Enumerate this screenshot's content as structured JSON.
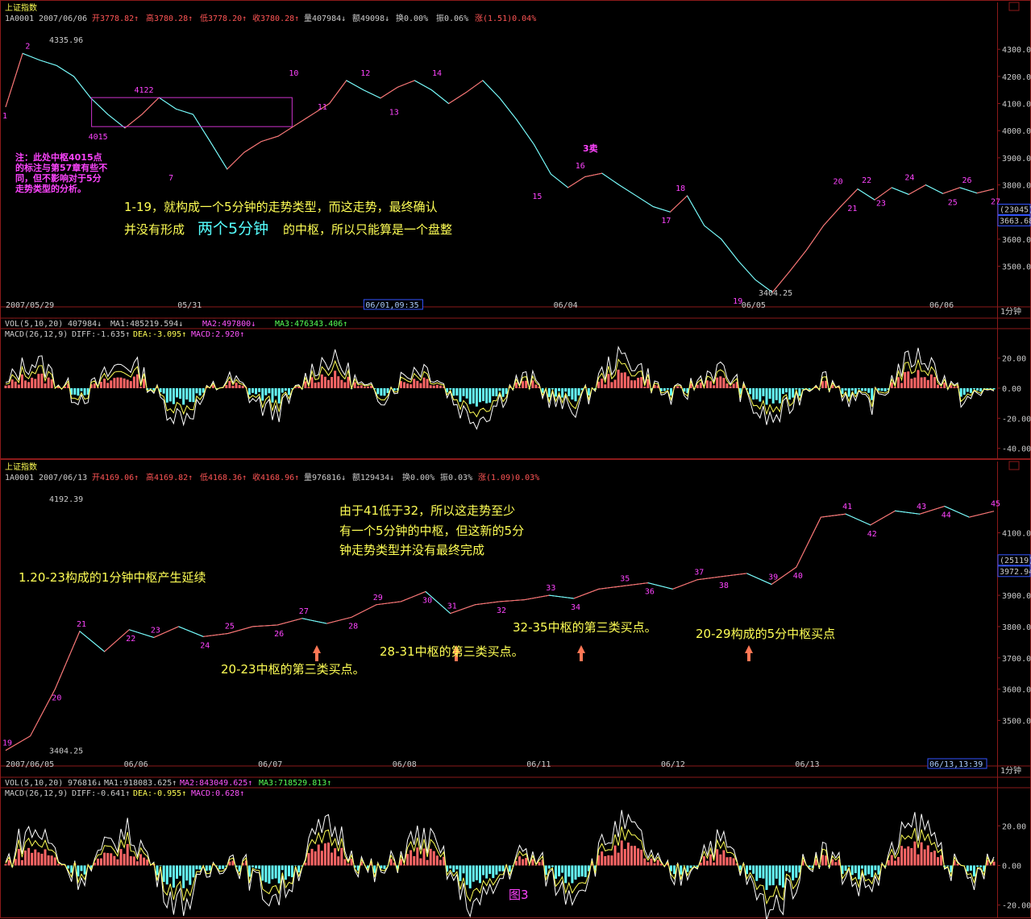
{
  "colors": {
    "up": "#ff5555",
    "down": "#55ffff",
    "price": "#ffffff",
    "frame": "#8b1a1a",
    "label": "#ff44ff",
    "note": "#ffff55",
    "blue": "#3355ff"
  },
  "fig_label": "图3",
  "chart_data": [
    {
      "type": "line",
      "panel_title": "上证指数",
      "info_code": "1A0001",
      "info_date": "2007/06/06",
      "info_open": "开3778.82↑",
      "info_high": "高3780.28↑",
      "info_low": "低3778.20↑",
      "info_close": "收3780.28↑",
      "info_vol": "量407984↓",
      "info_amt": "额49098↓",
      "info_turn": "换0.00%",
      "info_amp": "振0.06%",
      "info_chg": "涨(1.51)0.04%",
      "ylim": [
        3380,
        4360
      ],
      "yticks": [
        "4300.0",
        "4200.0",
        "4100.0",
        "4000.0",
        "3900.0",
        "3800.0",
        "3700.0",
        "3600.0",
        "3500.0"
      ],
      "badge_top": "(23045)",
      "badge_price": "3663.68",
      "xticks": [
        "2007/05/29",
        "05/31",
        "06/01,09:35",
        "06/04",
        "06/05",
        "06/06"
      ],
      "period": "1分钟",
      "hi_label": "4335.96",
      "lo_label": "3404.25",
      "pivots": [
        {
          "n": "1",
          "x": 0,
          "y": 4087,
          "pos": "below"
        },
        {
          "n": "2",
          "x": 8,
          "y": 4285,
          "pos": "above"
        },
        {
          "n": "4015",
          "x": 30,
          "y": 4010,
          "pos": "below"
        },
        {
          "n": "4122",
          "x": 46,
          "y": 4122,
          "pos": "above"
        },
        {
          "n": "7",
          "x": 58,
          "y": 3858,
          "pos": "below"
        },
        {
          "n": "10",
          "x": 100,
          "y": 4185,
          "pos": "above"
        },
        {
          "n": "11",
          "x": 110,
          "y": 4120,
          "pos": "below"
        },
        {
          "n": "12",
          "x": 125,
          "y": 4185,
          "pos": "above"
        },
        {
          "n": "13",
          "x": 135,
          "y": 4100,
          "pos": "below"
        },
        {
          "n": "14",
          "x": 150,
          "y": 4185,
          "pos": "above"
        },
        {
          "n": "15",
          "x": 185,
          "y": 3790,
          "pos": "below"
        },
        {
          "n": "16",
          "x": 200,
          "y": 3843,
          "pos": "above"
        },
        {
          "n": "17",
          "x": 230,
          "y": 3700,
          "pos": "below"
        },
        {
          "n": "18",
          "x": 235,
          "y": 3760,
          "pos": "above"
        },
        {
          "n": "19",
          "x": 255,
          "y": 3404,
          "pos": "below"
        },
        {
          "n": "20",
          "x": 290,
          "y": 3785,
          "pos": "above"
        },
        {
          "n": "21",
          "x": 295,
          "y": 3745,
          "pos": "below"
        },
        {
          "n": "22",
          "x": 300,
          "y": 3790,
          "pos": "above"
        },
        {
          "n": "23",
          "x": 305,
          "y": 3765,
          "pos": "below"
        },
        {
          "n": "24",
          "x": 315,
          "y": 3800,
          "pos": "above"
        },
        {
          "n": "25",
          "x": 330,
          "y": 3768,
          "pos": "below"
        },
        {
          "n": "26",
          "x": 335,
          "y": 3790,
          "pos": "above"
        },
        {
          "n": "27",
          "x": 345,
          "y": 3770,
          "pos": "below"
        }
      ],
      "series": [
        {
          "name": "close",
          "values": [
            4087,
            4285,
            4260,
            4240,
            4200,
            4120,
            4060,
            4010,
            4060,
            4122,
            4080,
            4060,
            3960,
            3858,
            3920,
            3960,
            3980,
            4020,
            4060,
            4100,
            4185,
            4150,
            4120,
            4160,
            4185,
            4150,
            4100,
            4140,
            4185,
            4120,
            4040,
            3950,
            3840,
            3790,
            3830,
            3843,
            3800,
            3760,
            3720,
            3700,
            3760,
            3650,
            3600,
            3520,
            3450,
            3404,
            3480,
            3560,
            3650,
            3720,
            3785,
            3745,
            3790,
            3765,
            3800,
            3768,
            3790,
            3770,
            3785
          ]
        }
      ],
      "zs_box": {
        "x0": 30,
        "x1": 100,
        "y0": 4015,
        "y1": 4122
      },
      "note_left": [
        "注：此处中枢4015点",
        "的标注与第57章有些不",
        "同，但不影响对于5分",
        "走势类型的分析。"
      ],
      "note_main_1": "1-19，就构成一个5分钟的走势类型，而这走势，最终确认",
      "note_main_2a": "并没有形成",
      "note_main_2b": "两个5分钟",
      "note_main_2c": "的中枢，所以只能算是一个盘整",
      "sell3": "3卖",
      "vol_line": {
        "a": "VOL(5,10,20)",
        "b": "407984↓",
        "c": "MA1:485219.594↓",
        "d": "MA2:497800↓",
        "e": "MA3:476343.406↑"
      },
      "macd_line": {
        "a": "MACD(26,12,9)",
        "b": "DIFF:-1.635↑",
        "c": "DEA:-3.095↑",
        "d": "MACD:2.920↑"
      },
      "macd_ticks": [
        "20.00",
        "0.00",
        "-20.00",
        "-40.00"
      ],
      "macd_lim": [
        -45,
        38
      ]
    },
    {
      "type": "line",
      "panel_title": "上证指数",
      "info_code": "1A0001",
      "info_date": "2007/06/13",
      "info_open": "开4169.06↑",
      "info_high": "高4169.82↑",
      "info_low": "低4168.36↑",
      "info_close": "收4168.96↑",
      "info_vol": "量976816↓",
      "info_amt": "额129434↓",
      "info_turn": "换0.00%",
      "info_amp": "振0.03%",
      "info_chg": "涨(1.09)0.03%",
      "ylim": [
        3380,
        4230
      ],
      "yticks": [
        "4100.0",
        "4000.0",
        "3900.0",
        "3800.0",
        "3700.0",
        "3600.0",
        "3500.0"
      ],
      "badge_top": "(25119)",
      "badge_price": "3972.94",
      "xticks": [
        "2007/06/05",
        "06/06",
        "06/07",
        "06/08",
        "06/11",
        "06/12",
        "06/13",
        "06/13,13:39"
      ],
      "period": "1分钟",
      "hi_label": "4192.39",
      "lo_label": "3404.25",
      "series": [
        {
          "name": "close",
          "values": [
            3404,
            3450,
            3600,
            3785,
            3720,
            3790,
            3765,
            3800,
            3768,
            3778,
            3800,
            3805,
            3826,
            3810,
            3830,
            3870,
            3880,
            3912,
            3842,
            3870,
            3880,
            3886,
            3900,
            3890,
            3920,
            3930,
            3940,
            3920,
            3950,
            3960,
            3970,
            3935,
            3990,
            4150,
            4160,
            4125,
            4170,
            4160,
            4185,
            4150,
            4169
          ]
        }
      ],
      "labels": {
        "20": "20",
        "21": "21",
        "22": "22",
        "23": "23",
        "24": "24",
        "25": "25",
        "26": "26",
        "27": "27",
        "28": "28",
        "29": "29",
        "30": "30",
        "31": "31",
        "32": "32",
        "33": "33",
        "34": "34",
        "35": "35",
        "36": "36",
        "37": "37",
        "38": "38",
        "39": "39",
        "40": "40",
        "41": "41",
        "42": "42",
        "43": "43",
        "44": "44",
        "45": "45",
        "19": "19"
      },
      "note_1": "1.20-23构成的1分钟中枢产生延续",
      "note_2a": "由于41低于32，所以这走势至少",
      "note_2b": "有一个5分钟的中枢，但这新的5分",
      "note_2c": "钟走势类型并没有最终完成",
      "note_3": "20-23中枢的第三类买点。",
      "note_4": "28-31中枢的第三类买点。",
      "note_5": "32-35中枢的第三类买点。",
      "note_6": "20-29构成的5分中枢买点",
      "vol_line": {
        "a": "VOL(5,10,20)",
        "b": "976816↓",
        "c": "MA1:918083.625↑",
        "d": "MA2:843049.625↑",
        "e": "MA3:718529.813↑"
      },
      "macd_line": {
        "a": "MACD(26,12,9)",
        "b": "DIFF:-0.641↑",
        "c": "DEA:-0.955↑",
        "d": "MACD:0.628↑"
      },
      "macd_ticks": [
        "20.00",
        "0.00",
        "-20.00"
      ],
      "macd_lim": [
        -25,
        38
      ]
    }
  ]
}
